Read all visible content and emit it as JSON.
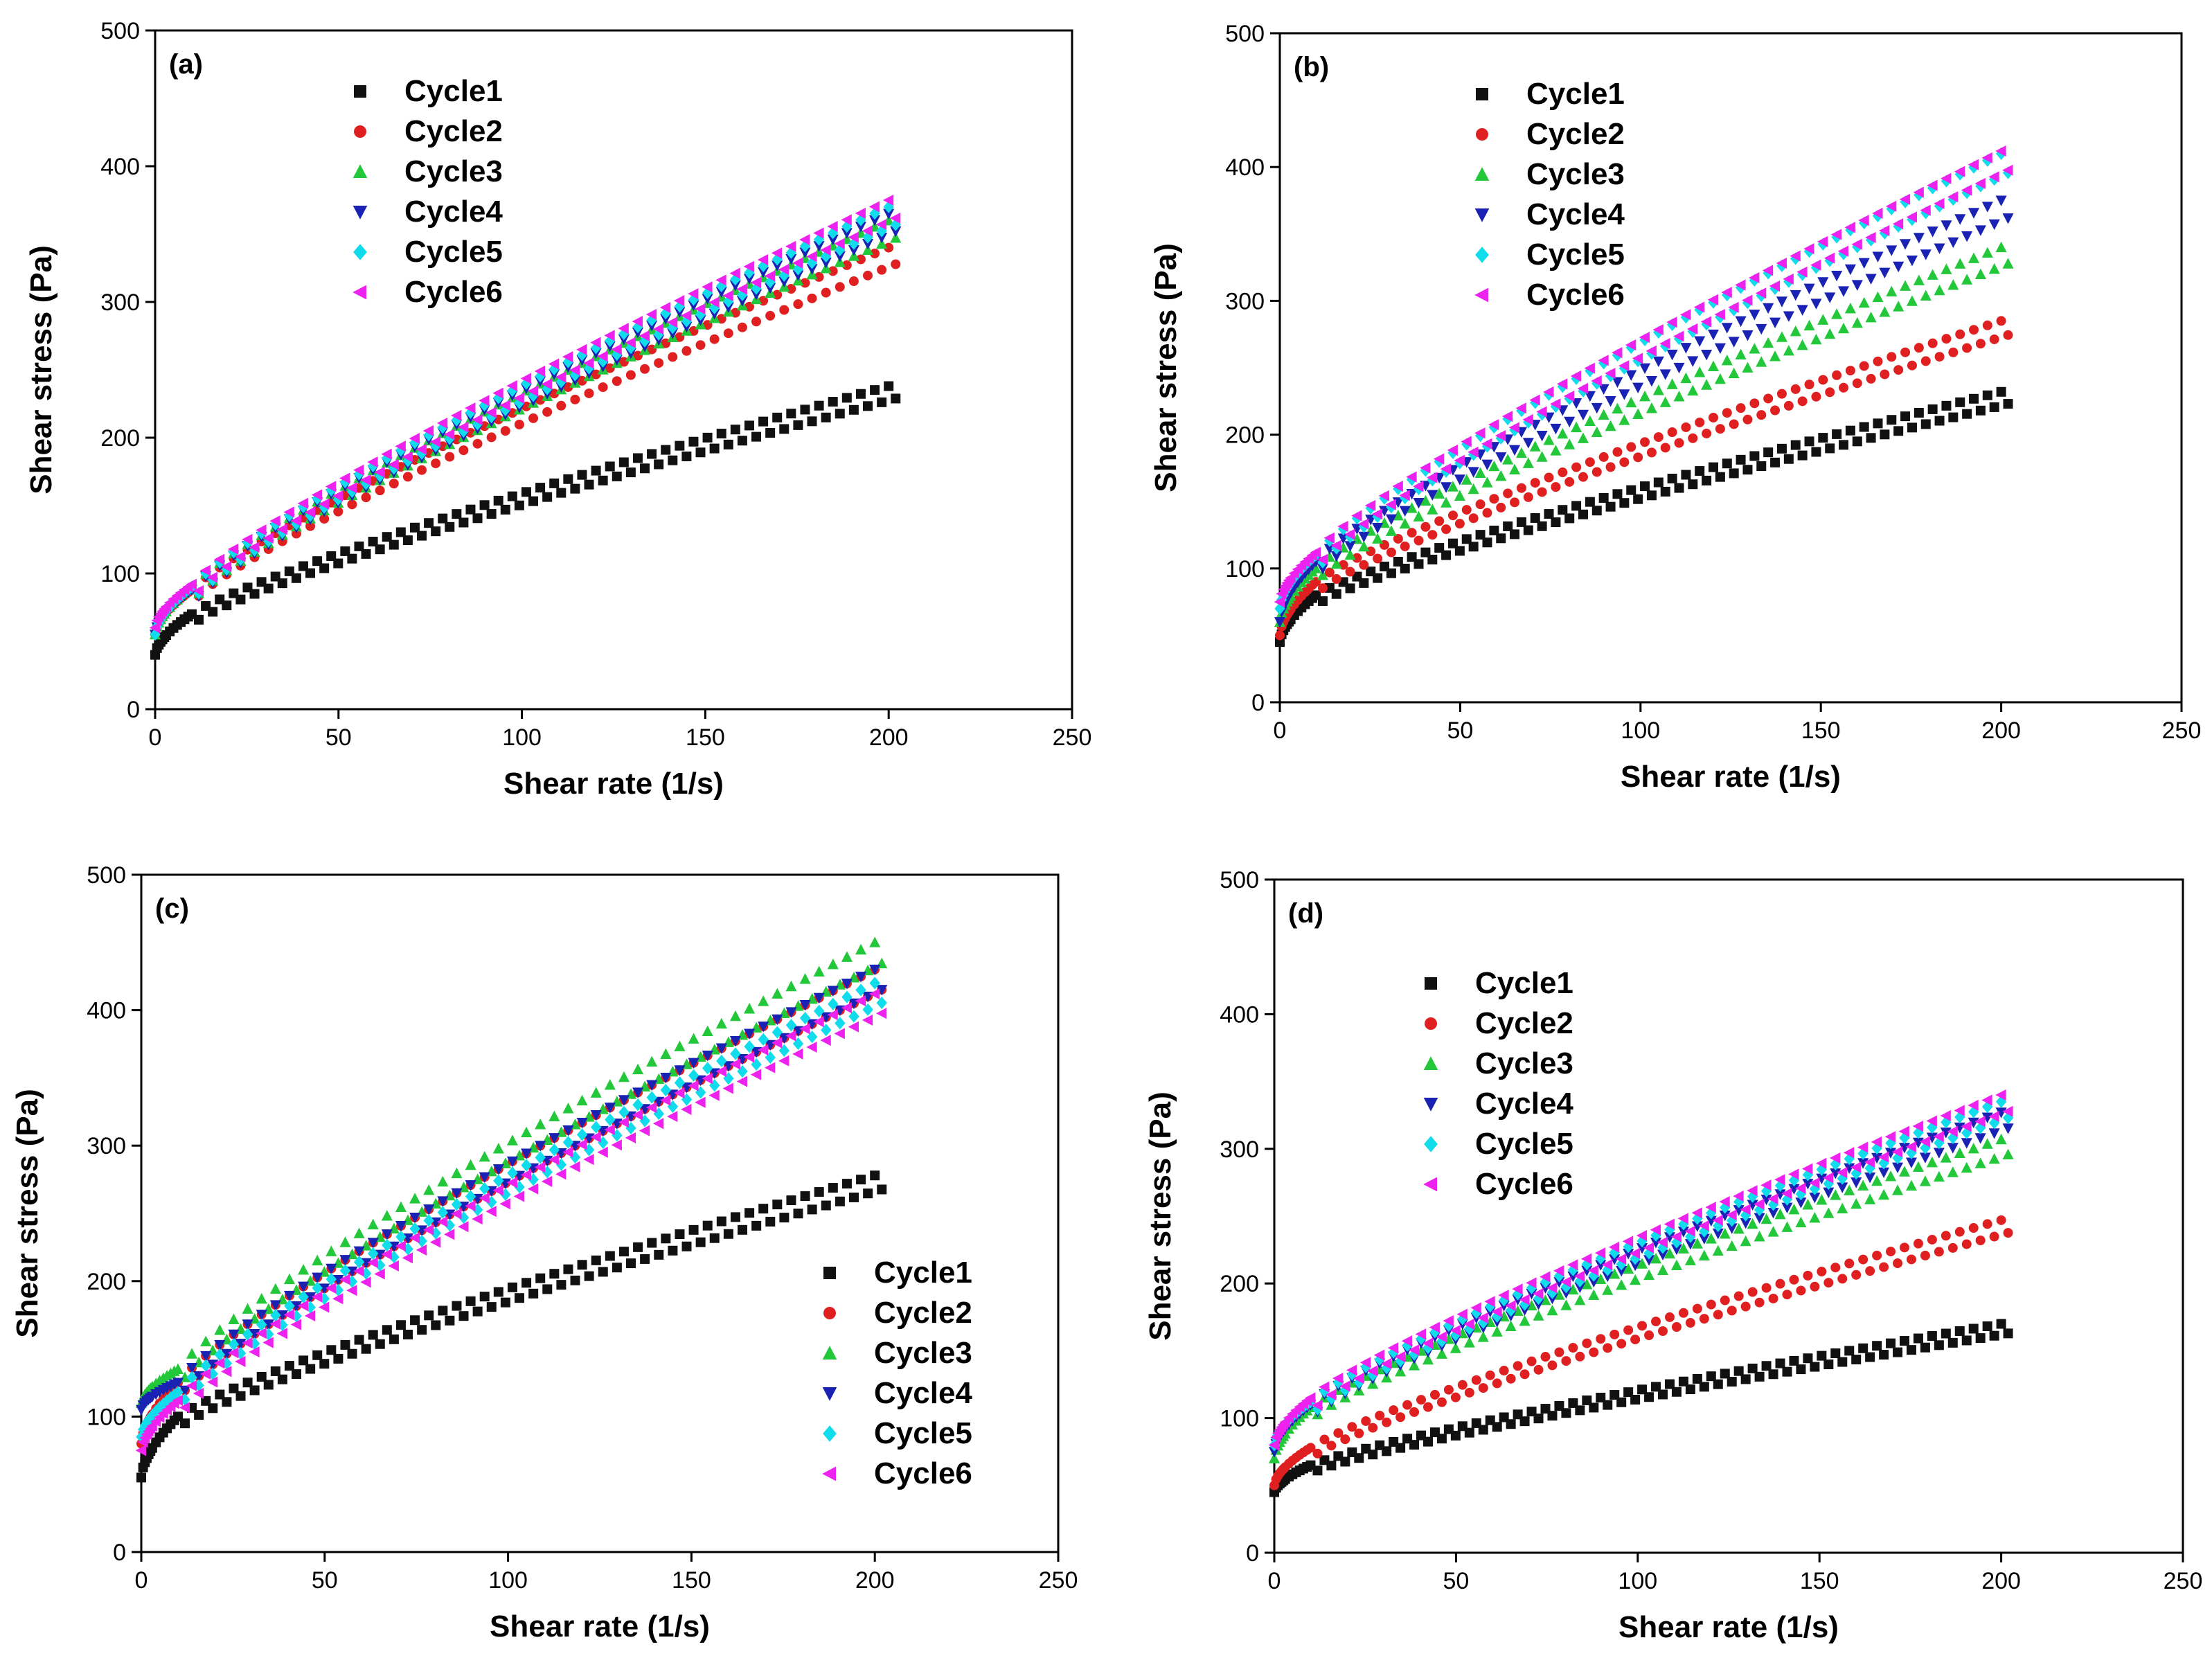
{
  "figure": {
    "series_colors": {
      "Cycle1": "#111111",
      "Cycle2": "#e02020",
      "Cycle3": "#22c83a",
      "Cycle4": "#1a22b4",
      "Cycle5": "#10dcec",
      "Cycle6": "#ee22ee"
    },
    "marker_shapes": {
      "Cycle1": "square",
      "Cycle2": "circle",
      "Cycle3": "triangle-up",
      "Cycle4": "triangle-down",
      "Cycle5": "diamond",
      "Cycle6": "triangle-left"
    }
  },
  "chart_data": [
    {
      "id": "a",
      "panel_label": "(a)",
      "type": "scatter",
      "xlabel": "Shear rate (1/s)",
      "ylabel": "Shear stress (Pa)",
      "xlim": [
        0,
        250
      ],
      "ylim": [
        0,
        500
      ],
      "xticks": [
        "0",
        "50",
        "100",
        "150",
        "200",
        "250"
      ],
      "yticks": [
        "0",
        "100",
        "200",
        "300",
        "400",
        "500"
      ],
      "legend_position": "top-left",
      "x_end": 200,
      "series": [
        {
          "name": "Cycle1",
          "start": 40,
          "at10": 70,
          "end": 238
        },
        {
          "name": "Cycle2",
          "start": 55,
          "at10": 88,
          "end": 340
        },
        {
          "name": "Cycle3",
          "start": 55,
          "at10": 90,
          "end": 360
        },
        {
          "name": "Cycle4",
          "start": 55,
          "at10": 88,
          "end": 365
        },
        {
          "name": "Cycle5",
          "start": 55,
          "at10": 90,
          "end": 370
        },
        {
          "name": "Cycle6",
          "start": 60,
          "at10": 92,
          "end": 375
        }
      ]
    },
    {
      "id": "b",
      "panel_label": "(b)",
      "type": "scatter",
      "xlabel": "Shear rate (1/s)",
      "ylabel": "Shear stress (Pa)",
      "xlim": [
        0,
        250
      ],
      "ylim": [
        0,
        500
      ],
      "xticks": [
        "0",
        "50",
        "100",
        "150",
        "200",
        "250"
      ],
      "yticks": [
        "0",
        "100",
        "200",
        "300",
        "400",
        "500"
      ],
      "legend_position": "top-left",
      "x_end": 200,
      "series": [
        {
          "name": "Cycle1",
          "start": 45,
          "at10": 80,
          "end": 232
        },
        {
          "name": "Cycle2",
          "start": 50,
          "at10": 90,
          "end": 285
        },
        {
          "name": "Cycle3",
          "start": 60,
          "at10": 100,
          "end": 340
        },
        {
          "name": "Cycle4",
          "start": 60,
          "at10": 105,
          "end": 375
        },
        {
          "name": "Cycle5",
          "start": 70,
          "at10": 110,
          "end": 410
        },
        {
          "name": "Cycle6",
          "start": 75,
          "at10": 112,
          "end": 412
        }
      ]
    },
    {
      "id": "c",
      "panel_label": "(c)",
      "type": "scatter",
      "xlabel": "Shear rate (1/s)",
      "ylabel": "Shear stress (Pa)",
      "xlim": [
        0,
        250
      ],
      "ylim": [
        0,
        500
      ],
      "xticks": [
        "0",
        "50",
        "100",
        "150",
        "200",
        "250"
      ],
      "yticks": [
        "0",
        "100",
        "200",
        "300",
        "400",
        "500"
      ],
      "legend_position": "bottom-right",
      "x_end": 200,
      "series": [
        {
          "name": "Cycle1",
          "start": 55,
          "at10": 100,
          "end": 278
        },
        {
          "name": "Cycle2",
          "start": 80,
          "at10": 125,
          "end": 430
        },
        {
          "name": "Cycle3",
          "start": 110,
          "at10": 135,
          "end": 450
        },
        {
          "name": "Cycle4",
          "start": 105,
          "at10": 125,
          "end": 430
        },
        {
          "name": "Cycle5",
          "start": 85,
          "at10": 118,
          "end": 420
        },
        {
          "name": "Cycle6",
          "start": 75,
          "at10": 112,
          "end": 412
        }
      ]
    },
    {
      "id": "d",
      "panel_label": "(d)",
      "type": "scatter",
      "xlabel": "Shear rate (1/s)",
      "ylabel": "Shear stress (Pa)",
      "xlim": [
        0,
        250
      ],
      "ylim": [
        0,
        500
      ],
      "xticks": [
        "0",
        "50",
        "100",
        "150",
        "200",
        "250"
      ],
      "yticks": [
        "0",
        "100",
        "200",
        "300",
        "400",
        "500"
      ],
      "legend_position": "top-left",
      "x_end": 200,
      "series": [
        {
          "name": "Cycle1",
          "start": 45,
          "at10": 65,
          "end": 170
        },
        {
          "name": "Cycle2",
          "start": 50,
          "at10": 78,
          "end": 247
        },
        {
          "name": "Cycle3",
          "start": 70,
          "at10": 108,
          "end": 307
        },
        {
          "name": "Cycle4",
          "start": 75,
          "at10": 110,
          "end": 327
        },
        {
          "name": "Cycle5",
          "start": 80,
          "at10": 112,
          "end": 335
        },
        {
          "name": "Cycle6",
          "start": 80,
          "at10": 115,
          "end": 340
        }
      ]
    }
  ]
}
